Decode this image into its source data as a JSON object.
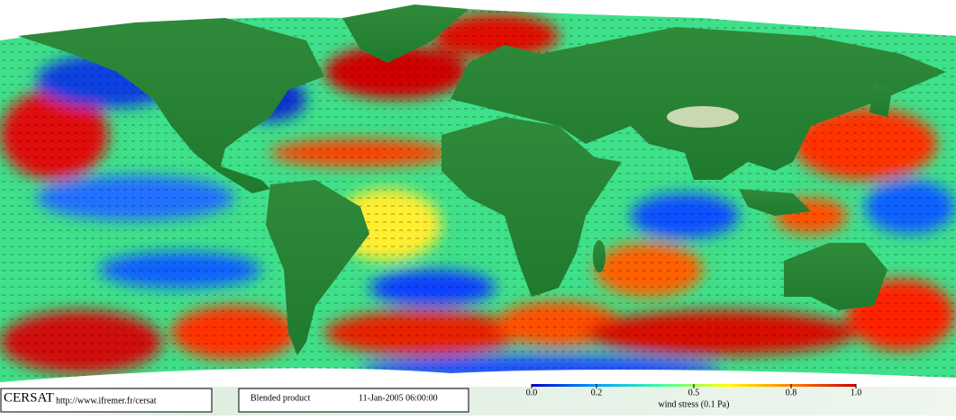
{
  "logo": "CERSAT",
  "url": "http://www.ifremer.fr/cersat",
  "product": "Blended product",
  "datetime": "11-Jan-2005 06:00:00",
  "colorbar": {
    "label": "wind stress (0.1 Pa)",
    "lim": [
      0,
      1
    ],
    "ticks": [
      {
        "value": 0,
        "label": "0.0"
      },
      0.2,
      0.5,
      0.8,
      {
        "value": 1,
        "label": "1.0"
      }
    ],
    "colors": [
      "#0000c8",
      "#00a0ff",
      "#40ffa0",
      "#ffff00",
      "#ff8000",
      "#c80000"
    ]
  }
}
